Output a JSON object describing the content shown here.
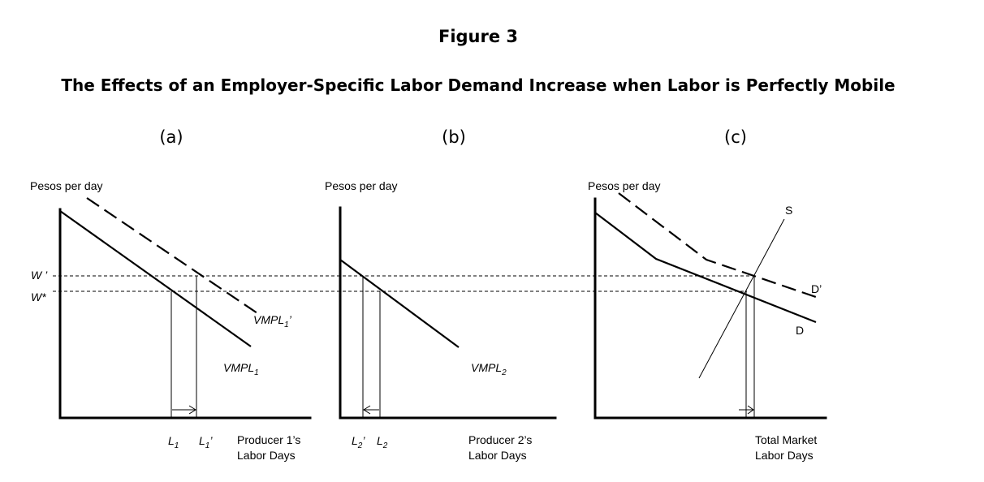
{
  "figure": {
    "number": "Figure 3",
    "title": "The Effects of an Employer-Specific Labor Demand Increase when Labor is Perfectly Mobile"
  },
  "panels": {
    "a": {
      "label": "(a)",
      "y_axis": "Pesos per day",
      "x_axis_line1": "Producer 1’s",
      "x_axis_line2": "Labor Days",
      "wage_prime": "W ’",
      "wage_star": "W*",
      "curve_new": {
        "base": "VMPL",
        "sub": "1",
        "suffix": "’"
      },
      "curve_old": {
        "base": "VMPL",
        "sub": "1",
        "suffix": ""
      },
      "qty_old": {
        "base": "L",
        "sub": "1",
        "suffix": ""
      },
      "qty_new": {
        "base": "L",
        "sub": "1",
        "suffix": "’"
      }
    },
    "b": {
      "label": "(b)",
      "y_axis": "Pesos per day",
      "x_axis_line1": "Producer 2’s",
      "x_axis_line2": "Labor Days",
      "curve": {
        "base": "VMPL",
        "sub": "2",
        "suffix": ""
      },
      "qty_new": {
        "base": "L",
        "sub": "2",
        "suffix": "’"
      },
      "qty_old": {
        "base": "L",
        "sub": "2",
        "suffix": ""
      }
    },
    "c": {
      "label": "(c)",
      "y_axis": "Pesos per day",
      "x_axis_line1": "Total Market",
      "x_axis_line2": "Labor Days",
      "supply_label": "S",
      "demand_new_label": "D’",
      "demand_old_label": "D"
    }
  }
}
